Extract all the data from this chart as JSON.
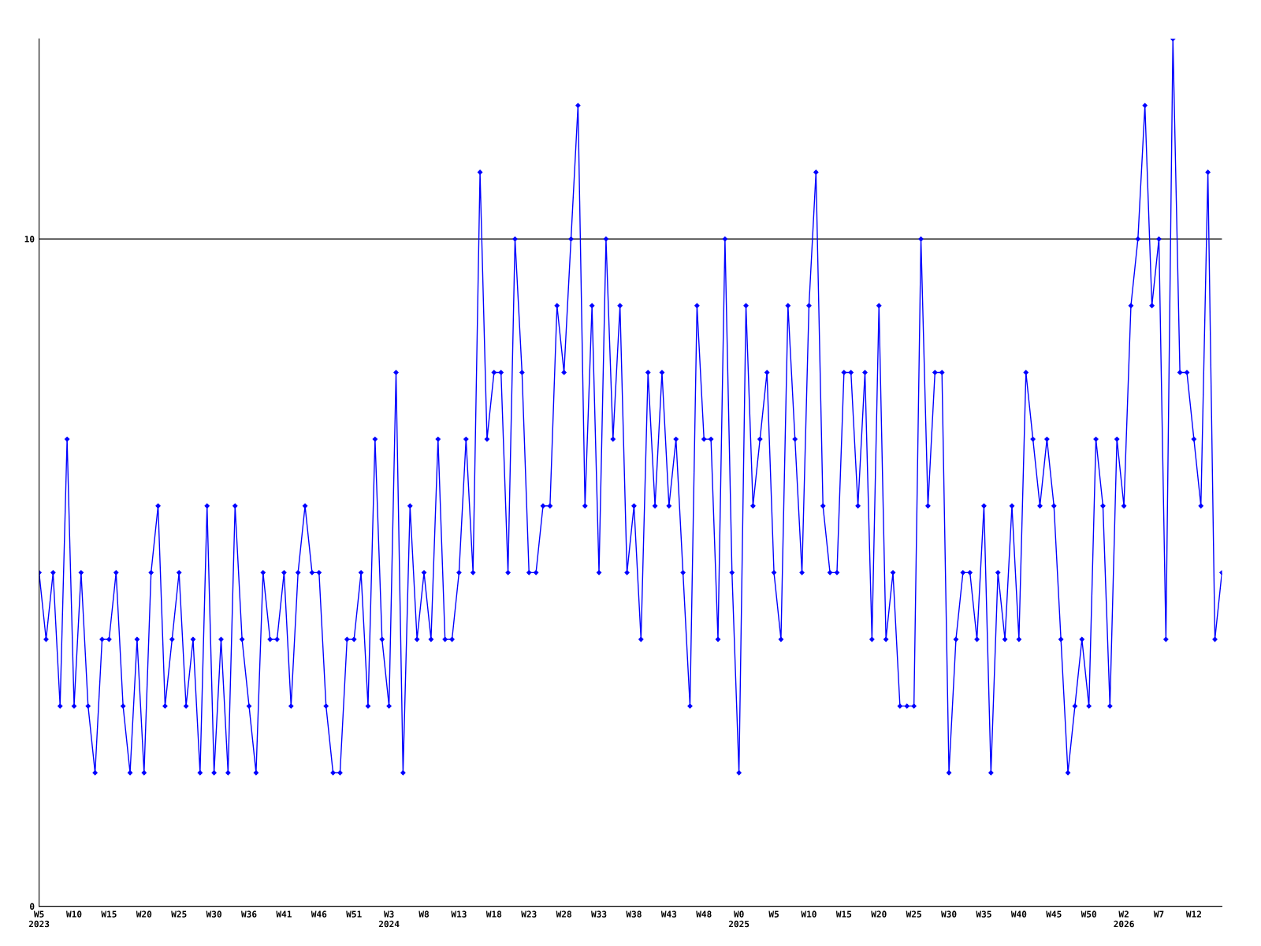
{
  "chart_data": {
    "type": "line",
    "categories": [
      "W5\n2023",
      null,
      null,
      null,
      null,
      "W10",
      null,
      null,
      null,
      null,
      "W15",
      null,
      null,
      null,
      null,
      "W20",
      null,
      null,
      null,
      null,
      "W25",
      null,
      null,
      null,
      null,
      "W30",
      null,
      null,
      null,
      null,
      "W36",
      null,
      null,
      null,
      null,
      "W41",
      null,
      null,
      null,
      null,
      "W46",
      null,
      null,
      null,
      null,
      "W51",
      null,
      null,
      null,
      null,
      "W3\n2024",
      null,
      null,
      null,
      null,
      "W8",
      null,
      null,
      null,
      null,
      "W13",
      null,
      null,
      null,
      null,
      "W18",
      null,
      null,
      null,
      null,
      "W23",
      null,
      null,
      null,
      null,
      "W28",
      null,
      null,
      null,
      null,
      "W33",
      null,
      null,
      null,
      null,
      "W38",
      null,
      null,
      null,
      null,
      "W43",
      null,
      null,
      null,
      null,
      "W48",
      null,
      null,
      null,
      null,
      "W0\n2025",
      null,
      null,
      null,
      null,
      "W5",
      null,
      null,
      null,
      null,
      "W10",
      null,
      null,
      null,
      null,
      "W15",
      null,
      null,
      null,
      null,
      "W20",
      null,
      null,
      null,
      null,
      "W25",
      null,
      null,
      null,
      null,
      "W30",
      null,
      null,
      null,
      null,
      "W35",
      null,
      null,
      null,
      null,
      "W40",
      null,
      null,
      null,
      null,
      "W45",
      null,
      null,
      null,
      null,
      "W50",
      null,
      null,
      null,
      null,
      "W2\n2026",
      null,
      null,
      null,
      null,
      "W7",
      null,
      null,
      null,
      null,
      "W12",
      null,
      null,
      null,
      null
    ],
    "series": [
      {
        "color": "#0000ff",
        "values": [
          5,
          4,
          5,
          3,
          7,
          3,
          5,
          3,
          2,
          4,
          4,
          5,
          3,
          2,
          4,
          2,
          5,
          6,
          3,
          4,
          5,
          3,
          4,
          2,
          6,
          2,
          4,
          2,
          6,
          4,
          3,
          2,
          5,
          4,
          4,
          5,
          3,
          5,
          6,
          5,
          5,
          3,
          2,
          2,
          4,
          4,
          5,
          3,
          7,
          4,
          3,
          8,
          2,
          6,
          4,
          5,
          4,
          7,
          4,
          4,
          5,
          7,
          5,
          11,
          7,
          8,
          8,
          5,
          10,
          8,
          5,
          5,
          6,
          6,
          9,
          8,
          10,
          12,
          6,
          9,
          5,
          10,
          7,
          9,
          5,
          6,
          4,
          8,
          6,
          8,
          6,
          7,
          5,
          3,
          9,
          7,
          7,
          4,
          10,
          5,
          2,
          9,
          6,
          7,
          8,
          5,
          4,
          9,
          7,
          5,
          9,
          11,
          6,
          5,
          5,
          8,
          8,
          6,
          8,
          4,
          9,
          4,
          5,
          3,
          3,
          3,
          10,
          6,
          8,
          8,
          2,
          4,
          5,
          5,
          4,
          6,
          2,
          5,
          4,
          6,
          4,
          8,
          7,
          6,
          7,
          6,
          4,
          2,
          3,
          4,
          3,
          7,
          6,
          3,
          7,
          6,
          9,
          10,
          12,
          9,
          10,
          4,
          13,
          8,
          8,
          7,
          6,
          11,
          4,
          5
        ]
      }
    ],
    "ylim": [
      0,
      13
    ],
    "yticks": [
      0,
      10
    ],
    "grid": "y",
    "marker": "diamond",
    "line_style": "solid",
    "legend": false
  }
}
